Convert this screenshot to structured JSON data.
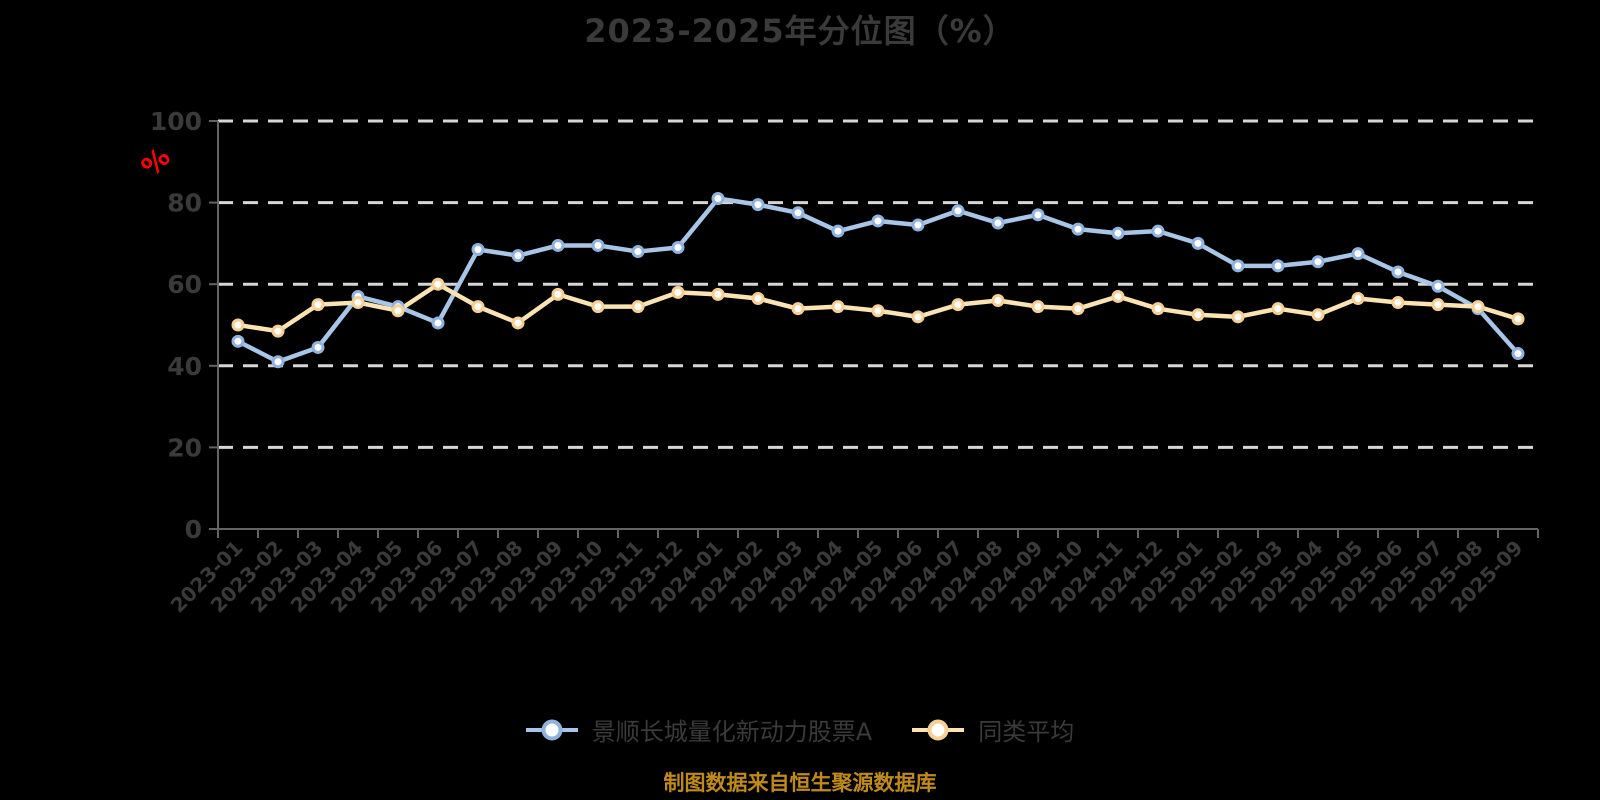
{
  "title": "2023-2025年分位图（%）",
  "y_axis": {
    "unit_label": "%",
    "ticks": [
      0,
      20,
      40,
      60,
      80,
      100
    ]
  },
  "footer": {
    "source_note": "制图数据来自恒生聚源数据库"
  },
  "legend": {
    "items": [
      {
        "label": "景顺长城量化新动力股票A"
      },
      {
        "label": "同类平均"
      }
    ]
  },
  "colors": {
    "background": "#000000",
    "text": "#3a3a3a",
    "axis": "#646464",
    "gridline": "#d6d6d6",
    "unit_label": "#ff0000",
    "footer": "#bf8a1a",
    "marker_fill": "#ffffff"
  },
  "chart_data": {
    "type": "line",
    "title": "2023-2025年分位图（%）",
    "ylabel": "%",
    "ylim": [
      0,
      100
    ],
    "y_ticks": [
      0,
      20,
      40,
      60,
      80,
      100
    ],
    "grid": "horizontal-dashed",
    "legend_position": "bottom",
    "categories": [
      "2023-01",
      "2023-02",
      "2023-03",
      "2023-04",
      "2023-05",
      "2023-06",
      "2023-07",
      "2023-08",
      "2023-09",
      "2023-10",
      "2023-11",
      "2023-12",
      "2024-01",
      "2024-02",
      "2024-03",
      "2024-04",
      "2024-05",
      "2024-06",
      "2024-07",
      "2024-08",
      "2024-09",
      "2024-10",
      "2024-11",
      "2024-12",
      "2025-01",
      "2025-02",
      "2025-03",
      "2025-04",
      "2025-05",
      "2025-06",
      "2025-07",
      "2025-08",
      "2025-09"
    ],
    "series": [
      {
        "name": "景顺长城量化新动力股票A",
        "color": "#a8c6e8",
        "marker_ring": "#8fb3de",
        "values": [
          46,
          41,
          44.5,
          57,
          54.5,
          50.5,
          68.5,
          67,
          69.5,
          69.5,
          68,
          69,
          81,
          79.5,
          77.5,
          73,
          75.5,
          74.5,
          78,
          75,
          77,
          73.5,
          72.5,
          73,
          70,
          64.5,
          64.5,
          65.5,
          67.5,
          63,
          59.5,
          54,
          43
        ]
      },
      {
        "name": "同类平均",
        "color": "#fce3b2",
        "marker_ring": "#f6cf92",
        "values": [
          50,
          48.5,
          55,
          55.5,
          53.5,
          60,
          54.5,
          50.5,
          57.5,
          54.5,
          54.5,
          58,
          57.5,
          56.5,
          54,
          54.5,
          53.5,
          52,
          55,
          56,
          54.5,
          54,
          57,
          54,
          52.5,
          52,
          54,
          52.5,
          56.5,
          55.5,
          55,
          54.5,
          51.5
        ]
      }
    ]
  }
}
